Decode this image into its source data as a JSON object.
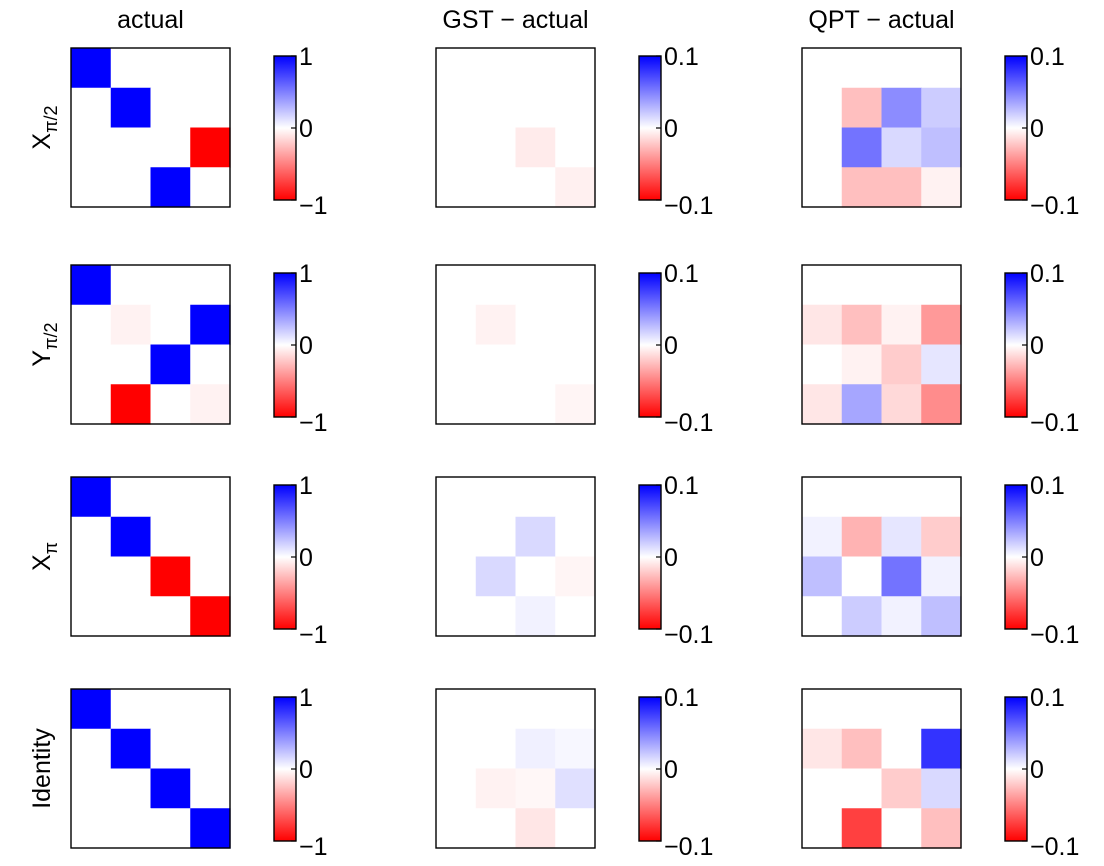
{
  "chart_data": {
    "type": "heatmap",
    "layout": "4x3 grid of 4x4 heatmaps, each with a vertical colorbar to its right",
    "colormap": {
      "negative": "#ff0000",
      "zero": "#ffffff",
      "positive": "#0000ff"
    },
    "columns": [
      {
        "title": "actual",
        "clim": [
          -1,
          1
        ],
        "cb_ticks": [
          "1",
          "0",
          "−1"
        ]
      },
      {
        "title": "GST − actual",
        "clim": [
          -0.1,
          0.1
        ],
        "cb_ticks": [
          "0.1",
          "0",
          "−0.1"
        ]
      },
      {
        "title": "QPT − actual",
        "clim": [
          -0.1,
          0.1
        ],
        "cb_ticks": [
          "0.1",
          "0",
          "−0.1"
        ]
      }
    ],
    "rows": [
      {
        "label": "X",
        "label_sub": "π/2"
      },
      {
        "label": "Y",
        "label_sub": "π/2"
      },
      {
        "label": "X",
        "label_sub": "π"
      },
      {
        "label": "Identity",
        "label_sub": ""
      }
    ],
    "matrices": [
      [
        [
          [
            1,
            0,
            0,
            0
          ],
          [
            0,
            1,
            0,
            0
          ],
          [
            0,
            0,
            0,
            -1
          ],
          [
            0,
            0,
            1,
            0
          ]
        ],
        [
          [
            0,
            0,
            0,
            0
          ],
          [
            0,
            0,
            0,
            0
          ],
          [
            0,
            0,
            -0.008,
            0
          ],
          [
            0,
            0,
            0,
            -0.006
          ]
        ],
        [
          [
            0,
            0,
            0,
            0
          ],
          [
            0,
            -0.025,
            0.045,
            0.02
          ],
          [
            0,
            0.055,
            0.015,
            0.025
          ],
          [
            0,
            -0.025,
            -0.025,
            -0.005
          ]
        ]
      ],
      [
        [
          [
            1,
            0,
            0,
            0
          ],
          [
            0,
            -0.05,
            0,
            1
          ],
          [
            0,
            0,
            1,
            0
          ],
          [
            0,
            -1,
            0,
            -0.05
          ]
        ],
        [
          [
            0,
            0,
            0,
            0
          ],
          [
            0,
            -0.005,
            0,
            0
          ],
          [
            0,
            0,
            0,
            0
          ],
          [
            0,
            0,
            0,
            -0.004
          ]
        ],
        [
          [
            0,
            0,
            0,
            0
          ],
          [
            -0.01,
            -0.025,
            -0.005,
            -0.04
          ],
          [
            0,
            -0.005,
            -0.02,
            0.01
          ],
          [
            -0.01,
            0.035,
            -0.015,
            -0.045
          ]
        ]
      ],
      [
        [
          [
            1,
            0,
            0,
            0
          ],
          [
            0,
            1,
            0,
            0
          ],
          [
            0,
            0,
            -1,
            0
          ],
          [
            0,
            0,
            0,
            -1
          ]
        ],
        [
          [
            0,
            0,
            0,
            0
          ],
          [
            0,
            0,
            0.015,
            0
          ],
          [
            0,
            0.015,
            0,
            -0.004
          ],
          [
            0,
            0,
            0.005,
            0
          ]
        ],
        [
          [
            0,
            0,
            0,
            0
          ],
          [
            0.005,
            -0.03,
            0.01,
            -0.02
          ],
          [
            0.025,
            0,
            0.055,
            0.005
          ],
          [
            0,
            0.02,
            0.005,
            0.025
          ]
        ]
      ],
      [
        [
          [
            1,
            0,
            0,
            0
          ],
          [
            0,
            1,
            0,
            0
          ],
          [
            0,
            0,
            1,
            0
          ],
          [
            0,
            0,
            0,
            1
          ]
        ],
        [
          [
            0,
            0,
            0,
            0
          ],
          [
            0,
            0,
            0.006,
            0.003
          ],
          [
            0,
            -0.005,
            -0.003,
            0.012
          ],
          [
            0,
            0,
            -0.01,
            0
          ]
        ],
        [
          [
            0,
            0,
            0,
            0
          ],
          [
            -0.01,
            -0.025,
            0,
            0.08
          ],
          [
            0,
            0,
            -0.02,
            0.015
          ],
          [
            0,
            -0.075,
            0,
            -0.025
          ]
        ]
      ]
    ]
  }
}
